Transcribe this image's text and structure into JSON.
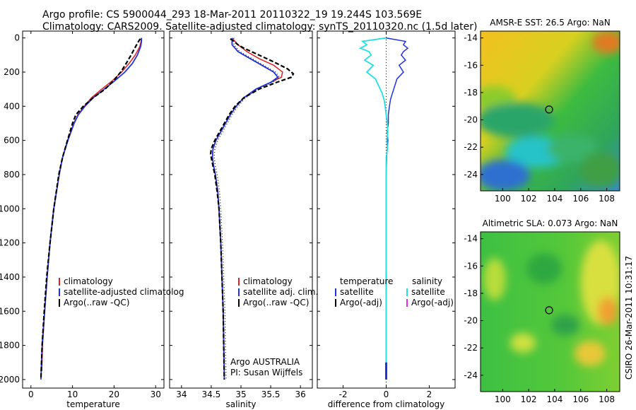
{
  "title_line1": "Argo profile: CS 5900044_293 18-Mar-2011 20110322_19 19.244S 103.569E",
  "title_line2": "Climatology: CARS2009. Satellite-adjusted climatology: synTS_20110320.nc (1.5d later)",
  "side_text": "CSIRO 26-Mar-2011 10:31:17",
  "colors": {
    "clim": "#dd2222",
    "sat": "#2233dd",
    "argo": "#000000",
    "sal_sat": "#22e0e0",
    "sal_argo": "#ee22ee"
  },
  "chart_data": [
    {
      "type": "line",
      "name": "temperature-profile",
      "xlabel": "temperature",
      "ylabel": "",
      "xlim": [
        -2,
        32
      ],
      "ylim": [
        2050,
        0
      ],
      "xticks": [
        "0",
        "10",
        "20",
        "30"
      ],
      "yticks": [
        "0",
        "200",
        "400",
        "600",
        "800",
        "1000",
        "1200",
        "1400",
        "1600",
        "1800",
        "2000"
      ],
      "legend": [
        "climatology",
        "satellite-adjusted climatolog",
        "Argo(..raw -QC)"
      ],
      "series": [
        {
          "name": "climatology",
          "depth": [
            0,
            20,
            50,
            100,
            150,
            200,
            250,
            300,
            350,
            400,
            450,
            500,
            600,
            700,
            800,
            1000,
            1200,
            1400,
            1600,
            1800,
            1950
          ],
          "values": [
            26.6,
            26.5,
            26.2,
            25.1,
            23.6,
            21.8,
            19.6,
            17.0,
            14.6,
            12.8,
            11.3,
            10.3,
            8.8,
            7.6,
            6.8,
            5.5,
            4.6,
            3.9,
            3.3,
            2.8,
            2.6
          ]
        },
        {
          "name": "satellite-adjusted climatology",
          "depth": [
            0,
            20,
            50,
            100,
            150,
            200,
            250,
            300,
            350,
            400,
            450,
            500,
            600,
            700,
            800,
            1000,
            1200,
            1400,
            1600,
            1800,
            2000
          ],
          "values": [
            26.6,
            26.6,
            26.4,
            25.6,
            24.4,
            22.6,
            20.2,
            17.6,
            15.0,
            13.0,
            11.4,
            10.4,
            8.9,
            7.6,
            6.8,
            5.5,
            4.6,
            3.9,
            3.3,
            2.7,
            2.4
          ]
        },
        {
          "name": "Argo(..raw -QC)",
          "depth": [
            5,
            20,
            50,
            100,
            150,
            200,
            250,
            300,
            350,
            400,
            450,
            500,
            600,
            700,
            800,
            1000,
            1200,
            1400,
            1600,
            1800,
            2000
          ],
          "values": [
            26.3,
            25.9,
            25.2,
            24.1,
            22.9,
            21.6,
            19.9,
            17.8,
            15.0,
            12.6,
            10.8,
            10.0,
            8.8,
            7.6,
            6.7,
            5.5,
            4.6,
            3.8,
            3.2,
            2.7,
            2.4
          ]
        }
      ]
    },
    {
      "type": "line",
      "name": "salinity-profile",
      "xlabel": "salinity",
      "ylabel": "",
      "xlim": [
        33.8,
        36.2
      ],
      "ylim": [
        2050,
        0
      ],
      "xticks": [
        "34",
        "34.5",
        "35",
        "35.5",
        "36"
      ],
      "legend": [
        "climatology",
        "satellite adj. clim.",
        "Argo(..raw -QC)"
      ],
      "annotation": [
        "Argo AUSTRALIA",
        "PI: Susan Wijffels"
      ],
      "series": [
        {
          "name": "climatology",
          "depth": [
            0,
            40,
            80,
            120,
            160,
            200,
            230,
            260,
            300,
            350,
            400,
            450,
            500,
            550,
            600,
            650,
            700,
            750,
            800,
            900,
            1000,
            1200,
            1400,
            1600,
            1800,
            1950
          ],
          "values": [
            34.85,
            34.95,
            35.1,
            35.3,
            35.55,
            35.7,
            35.68,
            35.5,
            35.25,
            35.05,
            34.92,
            34.82,
            34.74,
            34.66,
            34.58,
            34.53,
            34.52,
            34.54,
            34.57,
            34.61,
            34.63,
            34.66,
            34.68,
            34.7,
            34.71,
            34.72
          ]
        },
        {
          "name": "satellite adj. clim.",
          "depth": [
            0,
            40,
            80,
            120,
            160,
            200,
            230,
            260,
            300,
            350,
            400,
            450,
            500,
            550,
            600,
            650,
            700,
            750,
            800,
            900,
            1000,
            1200,
            1400,
            1600,
            1800,
            2000
          ],
          "values": [
            34.85,
            34.85,
            34.95,
            35.15,
            35.35,
            35.55,
            35.62,
            35.5,
            35.25,
            35.05,
            34.92,
            34.82,
            34.74,
            34.66,
            34.58,
            34.53,
            34.52,
            34.54,
            34.57,
            34.61,
            34.63,
            34.66,
            34.68,
            34.7,
            34.71,
            34.72
          ]
        },
        {
          "name": "Argo(..raw -QC)",
          "depth": [
            5,
            20,
            40,
            60,
            100,
            140,
            180,
            210,
            230,
            260,
            300,
            350,
            400,
            450,
            500,
            550,
            600,
            650,
            680,
            700,
            750,
            800,
            900,
            1000,
            1200,
            1400,
            1600,
            1800,
            2000
          ],
          "values": [
            34.82,
            34.88,
            34.95,
            35.05,
            35.3,
            35.55,
            35.78,
            35.88,
            35.85,
            35.6,
            35.3,
            35.05,
            34.9,
            34.8,
            34.72,
            34.64,
            34.56,
            34.5,
            34.49,
            34.5,
            34.53,
            34.56,
            34.6,
            34.63,
            34.66,
            34.68,
            34.7,
            34.71,
            34.72
          ]
        }
      ]
    },
    {
      "type": "line",
      "name": "difference-profile",
      "xlabel": "difference from climatology",
      "ylabel": "",
      "xlim": [
        -3.2,
        3.2
      ],
      "ylim": [
        2050,
        0
      ],
      "xticks": [
        "-2",
        "0",
        "2"
      ],
      "legend_left_title": "temperature",
      "legend_right_title": "salinity",
      "legend_left": [
        "satellite",
        "Argo(-adj)"
      ],
      "legend_right": [
        "satellite",
        "Argo(-adj)"
      ],
      "series": [
        {
          "name": "temperature satellite",
          "depth": [
            0,
            20,
            40,
            60,
            80,
            100,
            130,
            160,
            200,
            240,
            280,
            320,
            360,
            400,
            450,
            500,
            550,
            600,
            650,
            700,
            800,
            1000,
            1200,
            1400,
            1600,
            1800,
            2000
          ],
          "values": [
            0.0,
            0.9,
            0.8,
            1.0,
            0.8,
            0.7,
            0.9,
            0.6,
            0.8,
            0.5,
            0.4,
            0.3,
            0.2,
            0.15,
            0.1,
            0.1,
            0.05,
            0.08,
            0.05,
            0.02,
            0.0,
            0.0,
            0.0,
            0.0,
            0.0,
            0.0,
            0.0
          ]
        },
        {
          "name": "salinity satellite",
          "depth": [
            0,
            20,
            40,
            60,
            80,
            100,
            130,
            160,
            200,
            240,
            280,
            320,
            360,
            400,
            450,
            500,
            550,
            600,
            650,
            700,
            800,
            1000,
            1200,
            1400,
            1600,
            1800,
            2000
          ],
          "values": [
            0.0,
            -1.1,
            -0.9,
            -1.2,
            -0.8,
            -0.7,
            -1.0,
            -0.6,
            -0.9,
            -0.5,
            -0.35,
            -0.2,
            -0.1,
            -0.05,
            0.0,
            0.05,
            0.08,
            0.03,
            0.06,
            0.0,
            0.0,
            0.0,
            0.0,
            0.0,
            0.0,
            0.0,
            0.0
          ]
        },
        {
          "name": "Argo(-adj)",
          "depth": [
            0,
            200,
            400,
            600,
            800,
            1000,
            1200,
            1400,
            1600,
            1800,
            2000
          ],
          "values": [
            0,
            0,
            0,
            0,
            0,
            0,
            0,
            0,
            0,
            0,
            0
          ]
        }
      ]
    },
    {
      "type": "heatmap",
      "name": "amsre-sst-map",
      "title": "AMSR-E SST: 26.5 Argo: NaN",
      "xlim": [
        98.3,
        109
      ],
      "ylim": [
        -25.2,
        -13.5
      ],
      "xticks": [
        "100",
        "102",
        "104",
        "106",
        "108"
      ],
      "yticks": [
        "-14",
        "-16",
        "-18",
        "-20",
        "-22",
        "-24"
      ],
      "marker": {
        "lon": 103.57,
        "lat": -19.24
      }
    },
    {
      "type": "heatmap",
      "name": "altimetric-sla-map",
      "title": "Altimetric SLA: 0.073 Argo: NaN",
      "xlim": [
        98.3,
        109
      ],
      "ylim": [
        -25.2,
        -13.5
      ],
      "xticks": [
        "100",
        "102",
        "104",
        "106",
        "108"
      ],
      "yticks": [
        "-14",
        "-16",
        "-18",
        "-20",
        "-22",
        "-24"
      ],
      "marker": {
        "lon": 103.57,
        "lat": -19.24
      }
    }
  ]
}
